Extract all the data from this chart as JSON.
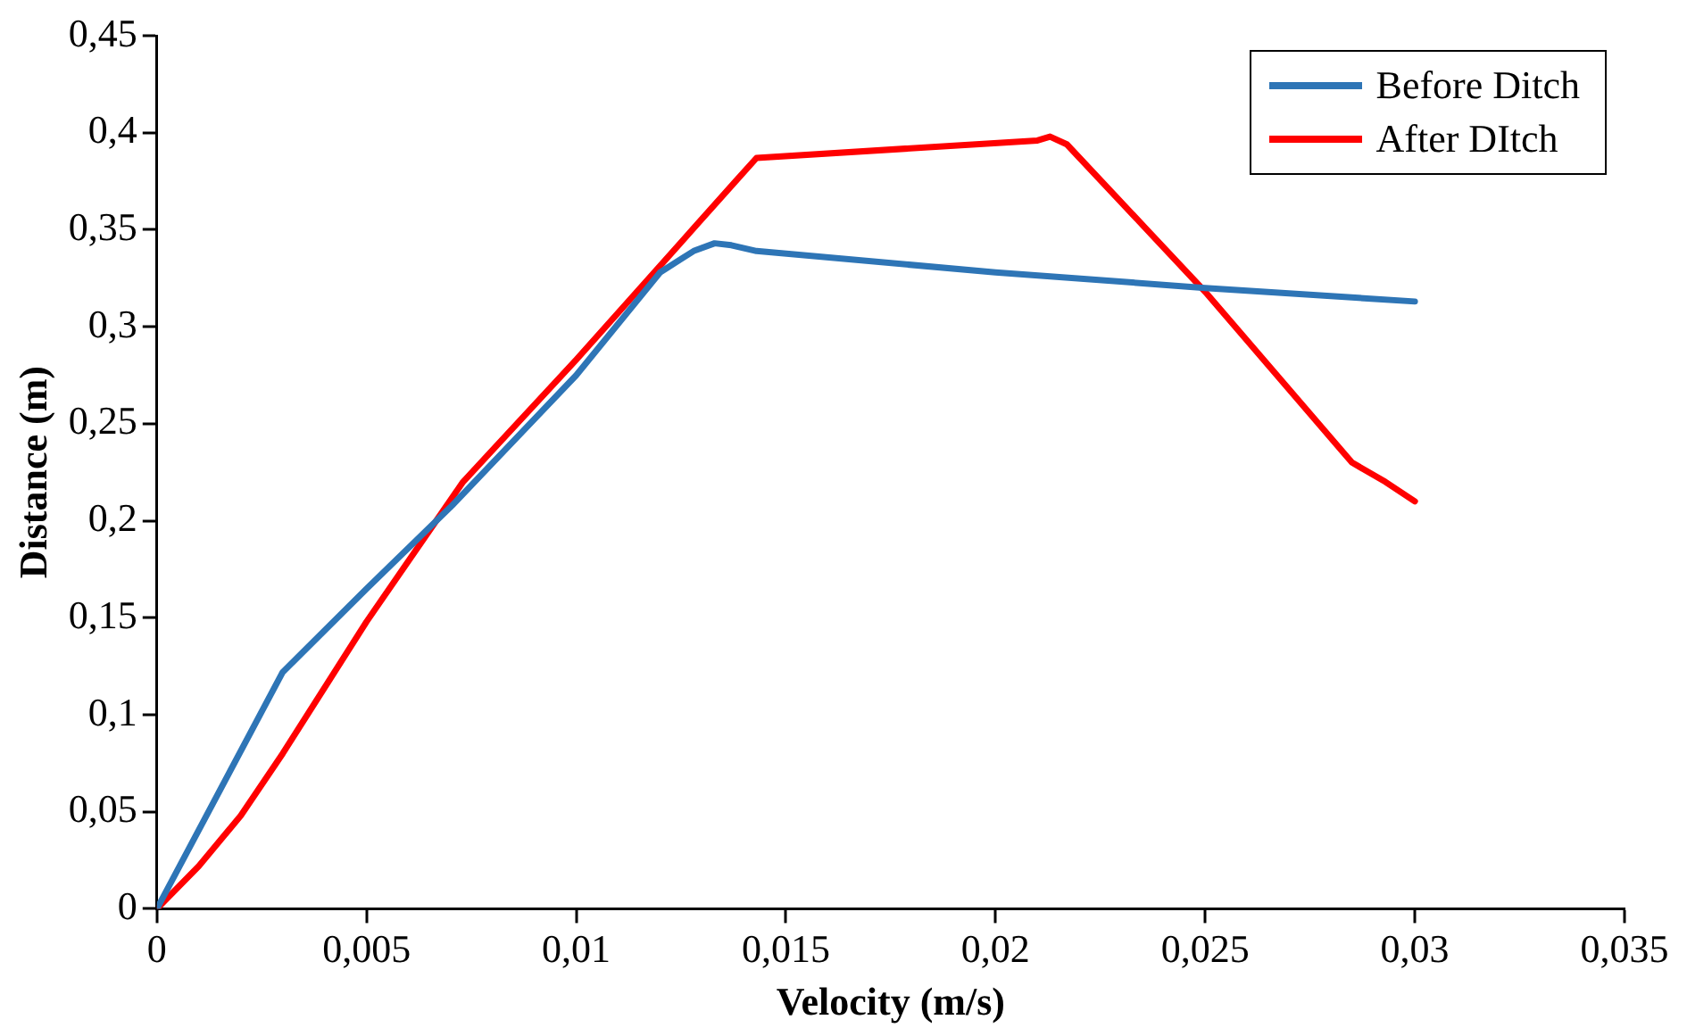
{
  "chart_data": {
    "type": "line",
    "xlabel": "Velocity (m/s)",
    "ylabel": "Distance (m)",
    "xlim": [
      0,
      0.035
    ],
    "xticks": [
      0,
      {
        "value": 0.005,
        "label": "0,005"
      },
      {
        "value": 0.01,
        "label": "0,01"
      },
      {
        "value": 0.015,
        "label": "0,015"
      },
      {
        "value": 0.02,
        "label": "0,02"
      },
      {
        "value": 0.025,
        "label": "0,025"
      },
      {
        "value": 0.03,
        "label": "0,03"
      },
      {
        "value": 0.035,
        "label": "0,035"
      }
    ],
    "ylim": [
      0,
      0.45
    ],
    "yticks": [
      0,
      {
        "value": 0.05,
        "label": "0,05"
      },
      {
        "value": 0.1,
        "label": "0,1"
      },
      {
        "value": 0.15,
        "label": "0,15"
      },
      {
        "value": 0.2,
        "label": "0,2"
      },
      {
        "value": 0.25,
        "label": "0,25"
      },
      {
        "value": 0.3,
        "label": "0,3"
      },
      {
        "value": 0.35,
        "label": "0,35"
      },
      {
        "value": 0.4,
        "label": "0,4"
      },
      {
        "value": 0.45,
        "label": "0,45"
      }
    ],
    "grid": false,
    "legend": "top right",
    "marker": "none",
    "line_style": "solid",
    "series": [
      {
        "name": "Before Ditch",
        "color": "#2e75b6",
        "x": [
          0,
          0.003,
          0.005,
          0.007,
          0.01,
          0.012,
          0.0128,
          0.0133,
          0.0137,
          0.0143,
          0.02,
          0.025,
          0.03
        ],
        "values": [
          0,
          0.122,
          0.165,
          0.207,
          0.275,
          0.328,
          0.339,
          0.343,
          0.342,
          0.339,
          0.328,
          0.32,
          0.313
        ]
      },
      {
        "name": "After DItch",
        "color": "#ff0000",
        "x": [
          0,
          0.001,
          0.002,
          0.003,
          0.005,
          0.0073,
          0.01,
          0.0138,
          0.0143,
          0.021,
          0.0213,
          0.0217,
          0.025,
          0.0285,
          0.0293,
          0.03
        ],
        "values": [
          0,
          0.022,
          0.048,
          0.08,
          0.148,
          0.22,
          0.283,
          0.375,
          0.387,
          0.396,
          0.398,
          0.394,
          0.318,
          0.23,
          0.22,
          0.21
        ]
      }
    ]
  }
}
